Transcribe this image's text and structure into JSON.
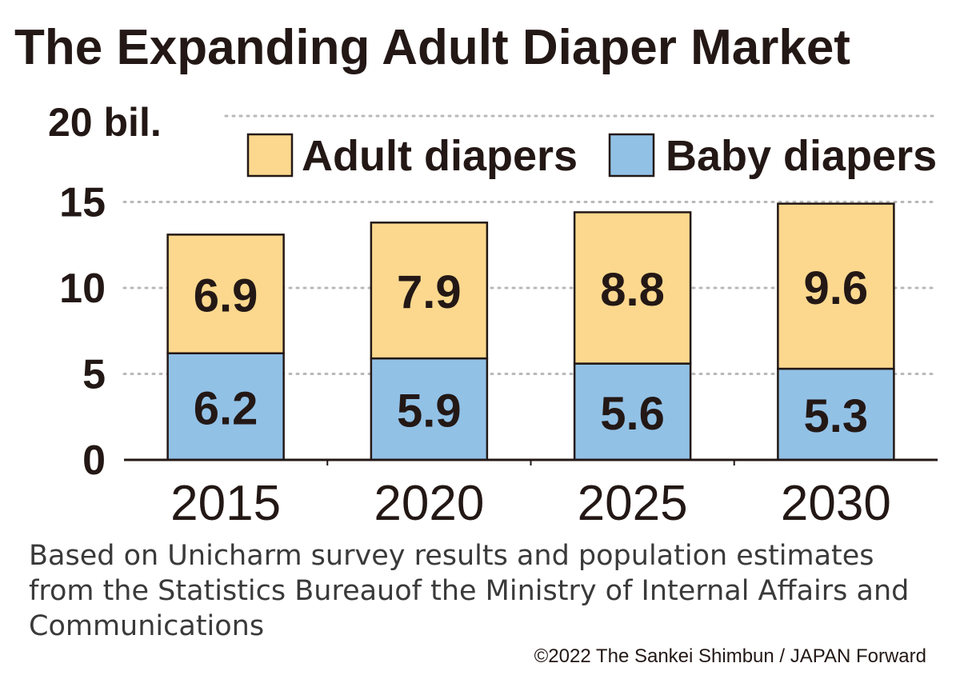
{
  "chart_data": {
    "type": "bar",
    "stacked": true,
    "title": "The Expanding Adult Diaper Market",
    "unit_label": "20 bil.",
    "categories": [
      "2015",
      "2020",
      "2025",
      "2030"
    ],
    "series": [
      {
        "name": "Baby diapers",
        "values": [
          6.2,
          5.9,
          5.6,
          5.3
        ],
        "color": "#92c1e6"
      },
      {
        "name": "Adult diapers",
        "values": [
          6.9,
          7.9,
          8.8,
          9.6
        ],
        "color": "#fbd88e"
      }
    ],
    "ylim": [
      0,
      20
    ],
    "yticks": [
      "0",
      "5",
      "10",
      "15"
    ],
    "grid": "dotted",
    "legend_position": "top-right"
  },
  "footnote": {
    "lines": [
      "Based on Unicharm survey results and population estimates",
      "from the Statistics Bureauof the Ministry of Internal Affairs and",
      "Communications"
    ],
    "credit": "©2022 The Sankei Shimbun / JAPAN Forward"
  }
}
